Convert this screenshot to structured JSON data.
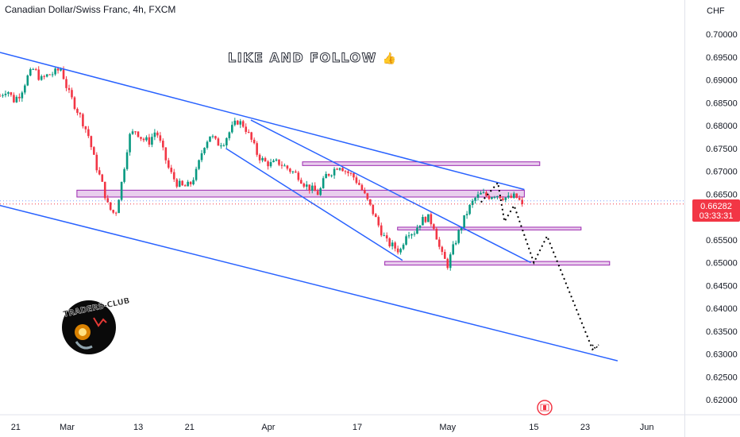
{
  "header": {
    "title": "Canadian Dollar/Swiss Franc, 4h, FXCM"
  },
  "banner": {
    "text": "LIKE AND FOLLOW",
    "icon": "thumbs-up-icon"
  },
  "logo": {
    "text": "TRADERS-CLUB"
  },
  "currency_label": "CHF",
  "last_price": {
    "value": "0.66282",
    "countdown": "03:33:31",
    "color": "#f23645"
  },
  "colors": {
    "up": "#089981",
    "down": "#f23645",
    "trendline": "#2962ff",
    "zone_fill": "#e1bee7",
    "zone_border": "#9c27b0",
    "projection": "#000000"
  },
  "chart_data": {
    "type": "candlestick",
    "title": "Canadian Dollar/Swiss Franc, 4h, FXCM",
    "ylabel": "CHF",
    "ylim": [
      0.6163,
      0.7045
    ],
    "y_ticks": [
      "0.70000",
      "0.69500",
      "0.69000",
      "0.68500",
      "0.68000",
      "0.67500",
      "0.67000",
      "0.66500",
      "0.66000",
      "0.65500",
      "0.65000",
      "0.64500",
      "0.64000",
      "0.63500",
      "0.63000",
      "0.62500",
      "0.62000"
    ],
    "x_ticks": [
      "21",
      "Mar",
      "13",
      "21",
      "Apr",
      "17",
      "May",
      "15",
      "23",
      "Jun"
    ],
    "price_path": [
      0.6865,
      0.688,
      0.6855,
      0.687,
      0.6905,
      0.6925,
      0.69,
      0.691,
      0.6915,
      0.6925,
      0.6875,
      0.6845,
      0.6815,
      0.678,
      0.672,
      0.6675,
      0.662,
      0.6605,
      0.668,
      0.6775,
      0.679,
      0.677,
      0.6765,
      0.679,
      0.6745,
      0.67,
      0.6675,
      0.6665,
      0.667,
      0.67,
      0.6755,
      0.678,
      0.676,
      0.6765,
      0.679,
      0.681,
      0.68,
      0.677,
      0.6735,
      0.672,
      0.6715,
      0.672,
      0.671,
      0.67,
      0.669,
      0.667,
      0.666,
      0.665,
      0.669,
      0.67,
      0.6715,
      0.67,
      0.669,
      0.667,
      0.664,
      0.661,
      0.6575,
      0.6545,
      0.6535,
      0.6525,
      0.657,
      0.6565,
      0.659,
      0.66,
      0.658,
      0.652,
      0.6495,
      0.654,
      0.658,
      0.6615,
      0.664,
      0.665,
      0.6645,
      0.665,
      0.6645,
      0.664,
      0.6645,
      0.6628
    ],
    "zones": [
      {
        "top": 0.66585,
        "bottom": 0.66435,
        "from": 0.1124,
        "to": 0.7661
      },
      {
        "top": 0.67205,
        "bottom": 0.67125,
        "from": 0.442,
        "to": 0.7886
      },
      {
        "top": 0.65775,
        "bottom": 0.65715,
        "from": 0.5809,
        "to": 0.849
      },
      {
        "top": 0.65025,
        "bottom": 0.64945,
        "from": 0.5622,
        "to": 0.8907
      }
    ],
    "trendlines": [
      {
        "p1": [
          0.0,
          0.696
        ],
        "p2": [
          0.7661,
          0.666
        ]
      },
      {
        "p1": [
          0.0,
          0.6625
        ],
        "p2": [
          0.9024,
          0.6285
        ]
      },
      {
        "p1": [
          0.3665,
          0.6812
        ],
        "p2": [
          0.7757,
          0.65
        ]
      },
      {
        "p1": [
          0.33,
          0.675
        ],
        "p2": [
          0.588,
          0.6505
        ]
      }
    ],
    "projection": [
      [
        0.7028,
        0.6632
      ],
      [
        0.7275,
        0.6675
      ],
      [
        0.7371,
        0.659
      ],
      [
        0.7511,
        0.6625
      ],
      [
        0.78,
        0.65
      ],
      [
        0.7993,
        0.6558
      ],
      [
        0.8657,
        0.631
      ],
      [
        0.87,
        0.6315
      ]
    ],
    "legend": "none",
    "grid": false
  }
}
